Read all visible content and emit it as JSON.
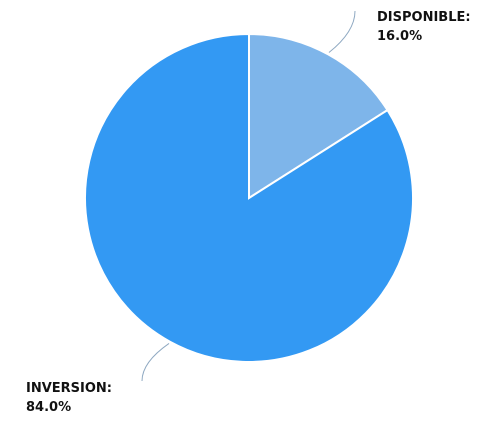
{
  "chart_data": {
    "type": "pie",
    "categories": [
      "DISPONIBLE",
      "INVERSION"
    ],
    "values": [
      16.0,
      84.0
    ],
    "unit": "%",
    "labels": [
      {
        "name": "DISPONIBLE:",
        "value": "16.0%"
      },
      {
        "name": "INVERSION:",
        "value": "84.0%"
      }
    ],
    "colors": [
      "#7eb5ea",
      "#3399f3"
    ],
    "start_angle_deg": 0,
    "direction": "clockwise",
    "legend": "none"
  }
}
